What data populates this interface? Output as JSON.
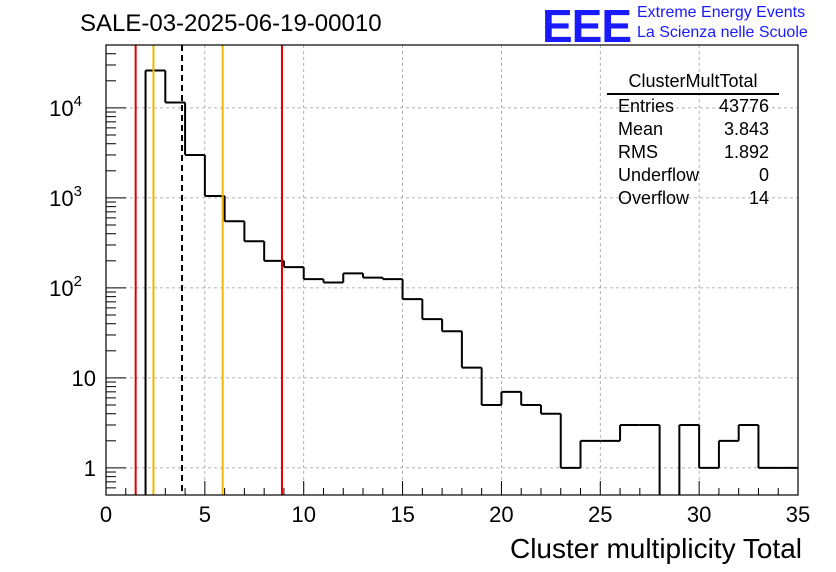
{
  "title": "SALE-03-2025-06-19-00010",
  "logo": {
    "mark": "EEE",
    "line1": "Extreme Energy Events",
    "line2": "La Scienza nelle Scuole",
    "color": "#1a1aff"
  },
  "stats_box": {
    "name": "ClusterMultTotal",
    "rows": [
      {
        "label": "Entries",
        "value": "43776"
      },
      {
        "label": "Mean",
        "value": "3.843"
      },
      {
        "label": "RMS",
        "value": "1.892"
      },
      {
        "label": "Underflow",
        "value": "0"
      },
      {
        "label": "Overflow",
        "value": "14"
      }
    ]
  },
  "chart_data": {
    "type": "histogram",
    "xlabel": "Cluster multiplicity Total",
    "ylabel": "",
    "xlim": [
      0,
      35
    ],
    "ylim": [
      0.5,
      50000
    ],
    "yscale": "log",
    "grid": true,
    "bin_width": 1,
    "bin_edges_start": 0,
    "values": [
      0,
      0,
      26000,
      11500,
      3000,
      1050,
      550,
      330,
      200,
      170,
      125,
      115,
      145,
      130,
      125,
      75,
      45,
      33,
      13,
      5,
      7,
      5,
      4,
      1,
      2,
      2,
      3,
      3,
      0,
      3,
      1,
      2,
      3,
      1,
      1
    ],
    "x_ticks": [
      0,
      5,
      10,
      15,
      20,
      25,
      30,
      35
    ],
    "x_tick_labels": [
      "0",
      "5",
      "10",
      "15",
      "20",
      "25",
      "30",
      "35"
    ],
    "y_ticks": [
      1,
      10,
      100,
      1000,
      10000
    ],
    "y_tick_labels": [
      {
        "base": "1",
        "exp": ""
      },
      {
        "base": "10",
        "exp": ""
      },
      {
        "base": "10",
        "exp": "2"
      },
      {
        "base": "10",
        "exp": "3"
      },
      {
        "base": "10",
        "exp": "4"
      }
    ],
    "vertical_lines": [
      {
        "x": 1.5,
        "color": "#e00000",
        "style": "solid"
      },
      {
        "x": 2.4,
        "color": "#f0b800",
        "style": "solid"
      },
      {
        "x": 3.843,
        "color": "#000000",
        "style": "dashed"
      },
      {
        "x": 5.9,
        "color": "#f0b800",
        "style": "solid"
      },
      {
        "x": 8.9,
        "color": "#e00000",
        "style": "solid"
      }
    ]
  }
}
